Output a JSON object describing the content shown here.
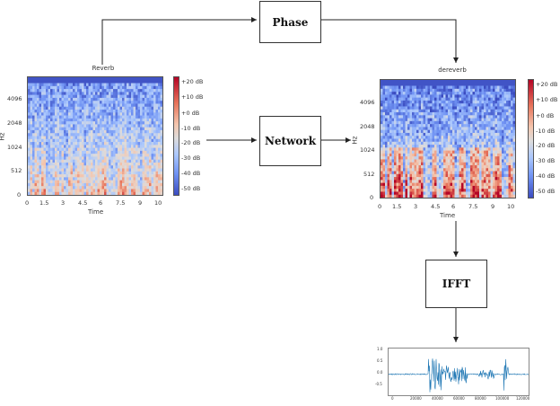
{
  "boxes": {
    "phase": "Phase",
    "network": "Network",
    "ifft": "IFFT"
  },
  "spectrograms": [
    {
      "title": "Reverb",
      "ylabel": "Hz",
      "xlabel": "Time",
      "yticks": [
        "4096",
        "2048",
        "1024",
        "512",
        "0"
      ],
      "xticks": [
        "0",
        "1.5",
        "3",
        "4.5",
        "6",
        "7.5",
        "9",
        "10"
      ],
      "colorbar": [
        "+20 dB",
        "+10 dB",
        "+0 dB",
        "-10 dB",
        "-20 dB",
        "-30 dB",
        "-40 dB",
        "-50 dB"
      ]
    },
    {
      "title": "dereverb",
      "ylabel": "Hz",
      "xlabel": "Time",
      "yticks": [
        "4096",
        "2048",
        "1024",
        "512",
        "0"
      ],
      "xticks": [
        "0",
        "1.5",
        "3",
        "4.5",
        "6",
        "7.5",
        "9",
        "10"
      ],
      "colorbar": [
        "+20 dB",
        "+10 dB",
        "+0 dB",
        "-10 dB",
        "-20 dB",
        "-30 dB",
        "-40 dB",
        "-50 dB"
      ]
    }
  ],
  "waveform": {
    "yticks": [
      "1.0",
      "0.5",
      "0.0",
      "-0.5"
    ],
    "xticks": [
      "0",
      "20000",
      "40000",
      "60000",
      "80000",
      "100000",
      "120000"
    ]
  },
  "colors": {
    "spec_low": "#3b4cc0",
    "spec_high": "#b40426",
    "wave": "#1f77b4"
  }
}
